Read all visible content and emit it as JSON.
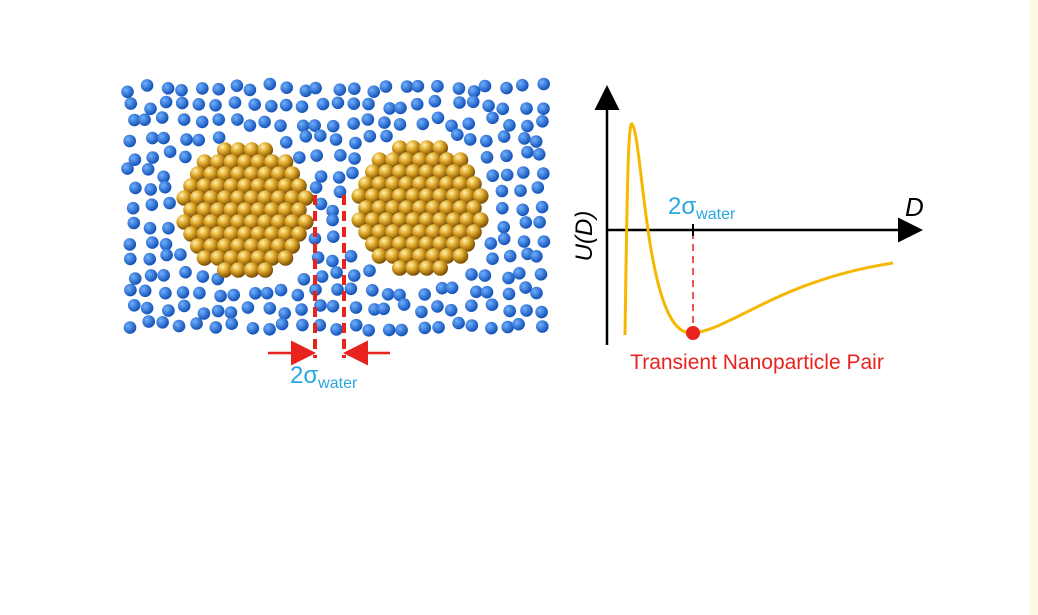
{
  "left_panel": {
    "gap_label": {
      "text": "2σ",
      "subscript": "water"
    }
  },
  "right_panel": {
    "y_axis_label": "U(D)",
    "x_axis_label": "D",
    "gap_label": {
      "text": "2σ",
      "subscript": "water"
    },
    "minimum_label": "Transient Nanoparticle Pair"
  }
}
